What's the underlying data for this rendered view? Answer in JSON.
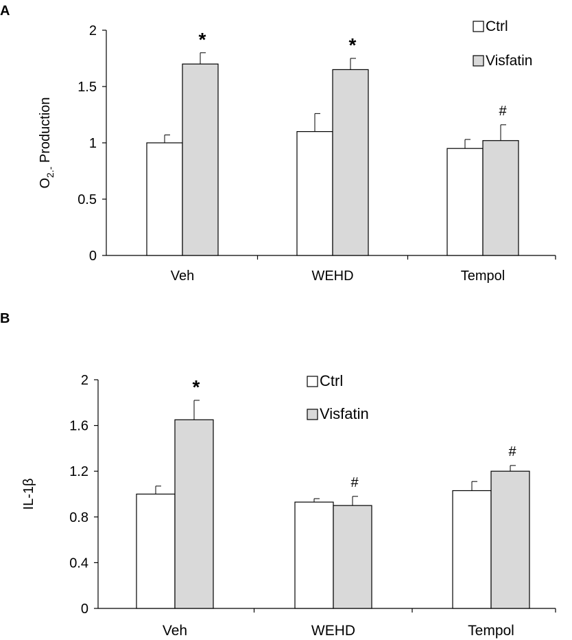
{
  "chart_data": [
    {
      "panel_label": "A",
      "type": "bar",
      "categories": [
        "Veh",
        "WEHD",
        "Tempol"
      ],
      "ylabel_main": "O",
      "ylabel_sub": "2.-",
      "ylabel_rest": " Production",
      "ylim": [
        0,
        2
      ],
      "yticks": [
        "0",
        "0.5",
        "1",
        "1.5",
        "2"
      ],
      "ytick_values": [
        0,
        0.5,
        1,
        1.5,
        2
      ],
      "grid": false,
      "legend_position": "top-right",
      "series": [
        {
          "name": "Ctrl",
          "color": "#ffffff",
          "values": [
            1.0,
            1.1,
            0.95
          ],
          "errors": [
            0.07,
            0.16,
            0.08
          ]
        },
        {
          "name": "Visfatin",
          "color": "#d9d9d9",
          "values": [
            1.7,
            1.65,
            1.02
          ],
          "errors": [
            0.1,
            0.1,
            0.14
          ]
        }
      ],
      "annotations": [
        {
          "category": 0,
          "series": 1,
          "text": "*"
        },
        {
          "category": 1,
          "series": 1,
          "text": "*"
        },
        {
          "category": 2,
          "series": 1,
          "text": "#"
        }
      ]
    },
    {
      "panel_label": "B",
      "type": "bar",
      "categories": [
        "Veh",
        "WEHD",
        "Tempol"
      ],
      "ylabel_main": "IL-1β",
      "ylabel_sub": "",
      "ylabel_rest": "",
      "ylim": [
        0,
        2
      ],
      "yticks": [
        "0",
        "0.4",
        "0.8",
        "1.2",
        "1.6",
        "2"
      ],
      "ytick_values": [
        0,
        0.4,
        0.8,
        1.2,
        1.6,
        2
      ],
      "grid": false,
      "legend_position": "top-center",
      "series": [
        {
          "name": "Ctrl",
          "color": "#ffffff",
          "values": [
            1.0,
            0.93,
            1.03
          ],
          "errors": [
            0.07,
            0.03,
            0.08
          ]
        },
        {
          "name": "Visfatin",
          "color": "#d9d9d9",
          "values": [
            1.65,
            0.9,
            1.2
          ],
          "errors": [
            0.17,
            0.08,
            0.05
          ]
        }
      ],
      "annotations": [
        {
          "category": 0,
          "series": 1,
          "text": "*"
        },
        {
          "category": 1,
          "series": 1,
          "text": "#"
        },
        {
          "category": 2,
          "series": 1,
          "text": "#"
        }
      ]
    }
  ]
}
